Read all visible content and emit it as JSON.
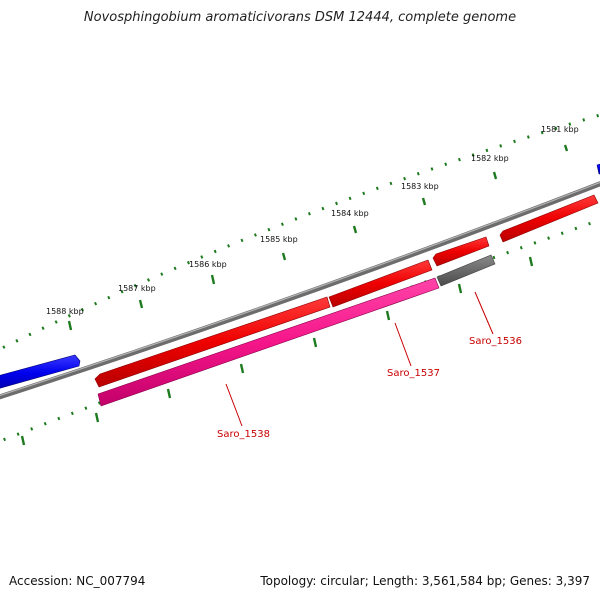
{
  "title": "Novosphingobium aromaticivorans DSM 12444, complete genome",
  "footer": {
    "accession_label": "Accession:",
    "accession": "NC_007794",
    "topology_label": "Topology:",
    "topology": "circular",
    "length_label": "Length:",
    "length": "3,561,584 bp",
    "genes_label": "Genes:",
    "genes": "3,397"
  },
  "colors": {
    "backbone": "#808080",
    "tick_green": "#1e7a1e",
    "gene_red": "#ff0000",
    "gene_blue": "#0000ee",
    "gene_pink": "#ff1a8c",
    "gene_grey": "#6e6e6e",
    "label_red": "#c80000"
  },
  "scale_labels": [
    {
      "name": "1581",
      "text": "1581 kbp"
    },
    {
      "name": "1582",
      "text": "1582 kbp"
    },
    {
      "name": "1583",
      "text": "1583 kbp"
    },
    {
      "name": "1584",
      "text": "1584 kbp"
    },
    {
      "name": "1585",
      "text": "1585 kbp"
    },
    {
      "name": "1586",
      "text": "1586 kbp"
    },
    {
      "name": "1587",
      "text": "1587 kbp"
    },
    {
      "name": "1588",
      "text": "1588 kbp"
    }
  ],
  "gene_labels": [
    {
      "name": "saro-1536",
      "text": "Saro_1536"
    },
    {
      "name": "saro-1537",
      "text": "Saro_1537"
    },
    {
      "name": "saro-1538",
      "text": "Saro_1538"
    }
  ]
}
